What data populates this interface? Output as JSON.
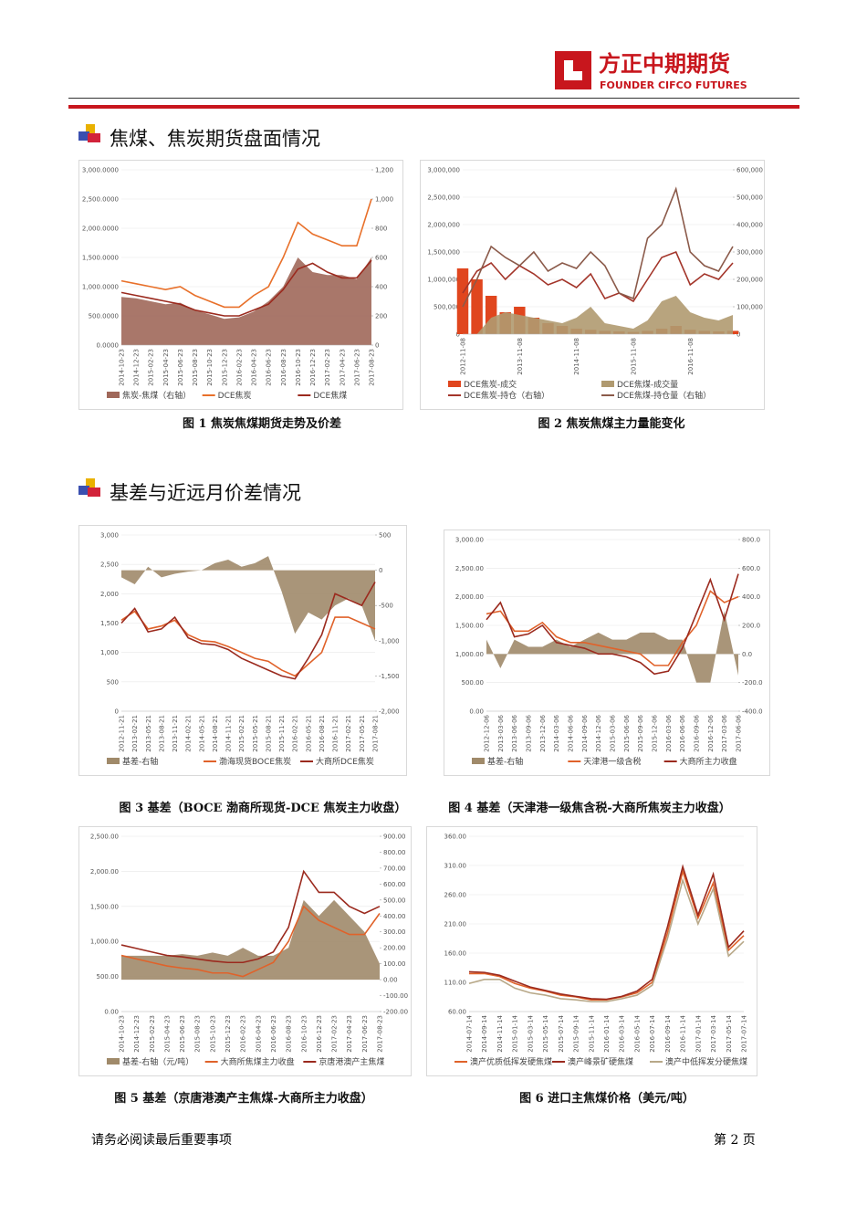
{
  "header": {
    "logo_cn": "方正中期期货",
    "logo_en": "FOUNDER CIFCO FUTURES"
  },
  "sections": [
    {
      "title": "焦煤、焦炭期货盘面情况"
    },
    {
      "title": "基差与近远月价差情况"
    }
  ],
  "chart_data": [
    {
      "type": "combo",
      "caption": "图 1 焦炭焦煤期货走势及价差",
      "categories": [
        "2014-10-23",
        "2014-12-23",
        "2015-02-23",
        "2015-04-23",
        "2015-06-23",
        "2015-08-23",
        "2015-10-23",
        "2015-12-23",
        "2016-02-23",
        "2016-04-23",
        "2016-06-23",
        "2016-08-23",
        "2016-10-23",
        "2016-12-23",
        "2017-02-23",
        "2017-04-23",
        "2017-06-23",
        "2017-08-23"
      ],
      "ylim": [
        0,
        3000
      ],
      "yticks": [
        {
          "value": 0,
          "label": "0.0000"
        },
        {
          "value": 500,
          "label": "500.0000"
        },
        {
          "value": 1000,
          "label": "1,000.0000"
        },
        {
          "value": 1500,
          "label": "1,500.0000"
        },
        {
          "value": 2000,
          "label": "2,000.0000"
        },
        {
          "value": 2500,
          "label": "2,500.0000"
        },
        {
          "value": 3000,
          "label": "3,000.0000"
        }
      ],
      "y2lim": [
        0,
        1200
      ],
      "y2ticks": [
        0,
        200,
        400,
        600,
        800,
        {
          "value": 1000,
          "label": "1,000"
        },
        {
          "value": 1200,
          "label": "1,200"
        }
      ],
      "series": [
        {
          "name": "焦炭-焦煤（右轴）",
          "kind": "area",
          "axis": "y2",
          "color": "#a0685a",
          "values": [
            330,
            320,
            300,
            280,
            290,
            240,
            210,
            180,
            190,
            230,
            300,
            400,
            600,
            500,
            480,
            480,
            450,
            600
          ]
        },
        {
          "name": "DCE焦炭",
          "kind": "line",
          "color": "#e8702a",
          "values": [
            1100,
            1050,
            1000,
            950,
            1000,
            850,
            750,
            650,
            650,
            850,
            1000,
            1500,
            2100,
            1900,
            1800,
            1700,
            1700,
            2500
          ]
        },
        {
          "name": "DCE焦煤",
          "kind": "line",
          "color": "#9b2a1e",
          "values": [
            900,
            850,
            800,
            750,
            700,
            600,
            550,
            500,
            500,
            600,
            700,
            950,
            1300,
            1400,
            1250,
            1150,
            1150,
            1450
          ]
        }
      ]
    },
    {
      "type": "combo",
      "caption": "图 2 焦炭焦煤主力量能变化",
      "categories": [
        "2012-11-08",
        null,
        null,
        null,
        "2013-11-08",
        null,
        null,
        null,
        "2014-11-08",
        null,
        null,
        null,
        "2015-11-08",
        null,
        null,
        null,
        "2016-11-08",
        null,
        null,
        null
      ],
      "ylim": [
        0,
        3000000
      ],
      "yticks": [
        0,
        {
          "value": 500000,
          "label": "500,000"
        },
        {
          "value": 1000000,
          "label": "1,000,000"
        },
        {
          "value": 1500000,
          "label": "1,500,000"
        },
        {
          "value": 2000000,
          "label": "2,000,000"
        },
        {
          "value": 2500000,
          "label": "2,500,000"
        },
        {
          "value": 3000000,
          "label": "3,000,000"
        }
      ],
      "y2lim": [
        0,
        600000
      ],
      "y2ticks": [
        0,
        {
          "value": 100000,
          "label": "100,000"
        },
        {
          "value": 200000,
          "label": "200,000"
        },
        {
          "value": 300000,
          "label": "300,000"
        },
        {
          "value": 400000,
          "label": "400,000"
        },
        {
          "value": 500000,
          "label": "500,000"
        },
        {
          "value": 600000,
          "label": "600,000"
        }
      ],
      "series": [
        {
          "name": "DCE焦炭-成交",
          "kind": "bar",
          "color": "#e0461e",
          "values": [
            1200000,
            1000000,
            700000,
            400000,
            500000,
            300000,
            200000,
            150000,
            100000,
            80000,
            60000,
            50000,
            40000,
            60000,
            100000,
            150000,
            80000,
            60000,
            50000,
            60000
          ]
        },
        {
          "name": "DCE焦煤-成交量",
          "kind": "area",
          "color": "#b09a70",
          "values": [
            0,
            0,
            300000,
            400000,
            350000,
            300000,
            250000,
            200000,
            300000,
            500000,
            200000,
            150000,
            100000,
            250000,
            600000,
            700000,
            400000,
            300000,
            250000,
            350000
          ]
        },
        {
          "name": "DCE焦炭-持仓（右轴）",
          "kind": "line",
          "axis": "y2",
          "color": "#a3352a",
          "values": [
            150000,
            230000,
            260000,
            200000,
            250000,
            220000,
            180000,
            200000,
            170000,
            220000,
            130000,
            150000,
            120000,
            200000,
            280000,
            300000,
            180000,
            220000,
            200000,
            260000
          ]
        },
        {
          "name": "DCE焦煤-持仓量（右轴）",
          "kind": "line",
          "axis": "y2",
          "color": "#8b5a4a",
          "values": [
            100000,
            200000,
            320000,
            280000,
            250000,
            300000,
            230000,
            260000,
            240000,
            300000,
            250000,
            150000,
            130000,
            350000,
            400000,
            530000,
            300000,
            250000,
            230000,
            320000
          ]
        }
      ]
    },
    {
      "type": "combo",
      "caption": "图 3 基差（BOCE 渤商所现货-DCE 焦炭主力收盘）",
      "categories": [
        "2012-11-21",
        "2013-02-21",
        "2013-05-21",
        "2013-08-21",
        "2013-11-21",
        "2014-02-21",
        "2014-05-21",
        "2014-08-21",
        "2014-11-21",
        "2015-02-21",
        "2015-05-21",
        "2015-08-21",
        "2015-11-21",
        "2016-02-21",
        "2016-05-21",
        "2016-08-21",
        "2016-11-21",
        "2017-02-21",
        "2017-05-21",
        "2017-08-21"
      ],
      "ylim": [
        0,
        3000
      ],
      "yticks": [
        0,
        500,
        {
          "value": 1000,
          "label": "1,000"
        },
        {
          "value": 1500,
          "label": "1,500"
        },
        {
          "value": 2000,
          "label": "2,000"
        },
        {
          "value": 2500,
          "label": "2,500"
        },
        {
          "value": 3000,
          "label": "3,000"
        }
      ],
      "y2lim": [
        -2000,
        500
      ],
      "y2ticks": [
        {
          "value": -2000,
          "label": "-2,000"
        },
        {
          "value": -1500,
          "label": "-1,500"
        },
        {
          "value": -1000,
          "label": "-1,000"
        },
        -500,
        0,
        500
      ],
      "series": [
        {
          "name": "基差-右轴",
          "kind": "area",
          "axis": "y2",
          "color": "#a08a6a",
          "values": [
            -100,
            -200,
            50,
            -100,
            -50,
            -20,
            0,
            100,
            150,
            50,
            100,
            200,
            -300,
            -900,
            -600,
            -700,
            -500,
            -400,
            -500,
            -1000
          ]
        },
        {
          "name": "渤海现货BOCE焦炭",
          "kind": "line",
          "color": "#e0622a",
          "values": [
            1550,
            1700,
            1400,
            1450,
            1550,
            1300,
            1200,
            1180,
            1100,
            1000,
            900,
            850,
            700,
            600,
            800,
            1000,
            1600,
            1600,
            1500,
            1400
          ]
        },
        {
          "name": "大商所DCE焦炭",
          "kind": "line",
          "color": "#9b2a1e",
          "values": [
            1500,
            1750,
            1350,
            1400,
            1600,
            1250,
            1150,
            1130,
            1050,
            900,
            800,
            700,
            600,
            550,
            900,
            1300,
            2000,
            1900,
            1800,
            2200
          ]
        }
      ]
    },
    {
      "type": "combo",
      "caption": "图 4 基差（天津港一级焦含税-大商所焦炭主力收盘）",
      "categories": [
        "2012-12-06",
        "2013-03-06",
        "2013-06-06",
        "2013-09-06",
        "2013-12-06",
        "2014-03-06",
        "2014-06-06",
        "2014-09-06",
        "2014-12-06",
        "2015-03-06",
        "2015-06-06",
        "2015-09-06",
        "2015-12-06",
        "2016-03-06",
        "2016-06-06",
        "2016-09-06",
        "2016-12-06",
        "2017-03-06",
        "2017-06-06"
      ],
      "ylim": [
        0,
        3000
      ],
      "yticks": [
        {
          "value": 0,
          "label": "0.00"
        },
        {
          "value": 500,
          "label": "500.00"
        },
        {
          "value": 1000,
          "label": "1,000.00"
        },
        {
          "value": 1500,
          "label": "1,500.00"
        },
        {
          "value": 2000,
          "label": "2,000.00"
        },
        {
          "value": 2500,
          "label": "2,500.00"
        },
        {
          "value": 3000,
          "label": "3,000.00"
        }
      ],
      "y2lim": [
        -400,
        800
      ],
      "y2ticks": [
        {
          "value": -400,
          "label": "-400.0"
        },
        {
          "value": -200,
          "label": "-200.0"
        },
        {
          "value": 0,
          "label": "0.0"
        },
        {
          "value": 200,
          "label": "200.0"
        },
        {
          "value": 400,
          "label": "400.0"
        },
        {
          "value": 600,
          "label": "600.0"
        },
        {
          "value": 800,
          "label": "800.0"
        }
      ],
      "series": [
        {
          "name": "基差-右轴",
          "kind": "area",
          "axis": "y2",
          "color": "#a08a6a",
          "values": [
            100,
            -100,
            100,
            50,
            50,
            100,
            50,
            100,
            150,
            100,
            100,
            150,
            150,
            100,
            100,
            -200,
            -200,
            300,
            -150
          ]
        },
        {
          "name": "天津港一级含税",
          "kind": "line",
          "color": "#e0622a",
          "values": [
            1700,
            1750,
            1400,
            1400,
            1550,
            1300,
            1200,
            1200,
            1150,
            1100,
            1050,
            1000,
            800,
            800,
            1200,
            1500,
            2100,
            1900,
            2000
          ]
        },
        {
          "name": "大商所主力收盘",
          "kind": "line",
          "color": "#9b2a1e",
          "values": [
            1600,
            1900,
            1300,
            1350,
            1500,
            1200,
            1150,
            1100,
            1000,
            1000,
            950,
            850,
            650,
            700,
            1100,
            1700,
            2300,
            1600,
            2400
          ]
        }
      ]
    },
    {
      "type": "combo",
      "caption": "图 5 基差（京唐港澳产主焦煤-大商所主力收盘）",
      "categories": [
        "2014-10-23",
        "2014-12-23",
        "2015-02-23",
        "2015-04-23",
        "2015-06-23",
        "2015-08-23",
        "2015-10-23",
        "2015-12-23",
        "2016-02-23",
        "2016-04-23",
        "2016-06-23",
        "2016-08-23",
        "2016-10-23",
        "2016-12-23",
        "2017-02-23",
        "2017-04-23",
        "2017-06-23",
        "2017-08-23"
      ],
      "ylim": [
        0,
        2500
      ],
      "yticks": [
        {
          "value": 0,
          "label": "0.00"
        },
        {
          "value": 500,
          "label": "500.00"
        },
        {
          "value": 1000,
          "label": "1,000.00"
        },
        {
          "value": 1500,
          "label": "1,500.00"
        },
        {
          "value": 2000,
          "label": "2,000.00"
        },
        {
          "value": 2500,
          "label": "2,500.00"
        }
      ],
      "y2lim": [
        -200,
        900
      ],
      "y2ticks": [
        {
          "value": -200,
          "label": "-200.00"
        },
        {
          "value": -100,
          "label": "-100.00"
        },
        {
          "value": 0,
          "label": "0.00"
        },
        {
          "value": 100,
          "label": "100.00"
        },
        {
          "value": 200,
          "label": "200.00"
        },
        {
          "value": 300,
          "label": "300.00"
        },
        {
          "value": 400,
          "label": "400.00"
        },
        {
          "value": 500,
          "label": "500.00"
        },
        {
          "value": 600,
          "label": "600.00"
        },
        {
          "value": 700,
          "label": "700.00"
        },
        {
          "value": 800,
          "label": "800.00"
        },
        {
          "value": 900,
          "label": "900.00"
        }
      ],
      "series": [
        {
          "name": "基差-右轴（元/吨）",
          "kind": "area",
          "axis": "y2",
          "color": "#a08a6a",
          "values": [
            150,
            150,
            150,
            150,
            160,
            150,
            170,
            150,
            200,
            150,
            150,
            200,
            500,
            400,
            500,
            400,
            300,
            100
          ]
        },
        {
          "name": "大商所焦煤主力收盘",
          "kind": "line",
          "color": "#e0622a",
          "values": [
            800,
            750,
            700,
            650,
            620,
            600,
            550,
            550,
            500,
            600,
            700,
            1000,
            1500,
            1300,
            1200,
            1100,
            1100,
            1400
          ]
        },
        {
          "name": "京唐港澳产主焦煤",
          "kind": "line",
          "color": "#9b2a1e",
          "values": [
            950,
            900,
            850,
            800,
            780,
            750,
            720,
            700,
            700,
            750,
            850,
            1200,
            2000,
            1700,
            1700,
            1500,
            1400,
            1500
          ]
        }
      ]
    },
    {
      "type": "line",
      "caption": "图 6 进口主焦煤价格（美元/吨）",
      "categories": [
        "2014-07-14",
        "2014-09-14",
        "2014-11-14",
        "2015-01-14",
        "2015-03-14",
        "2015-05-14",
        "2015-07-14",
        "2015-09-14",
        "2015-11-14",
        "2016-01-14",
        "2016-03-14",
        "2016-05-14",
        "2016-07-14",
        "2016-09-14",
        "2016-11-14",
        "2017-01-14",
        "2017-03-14",
        "2017-05-14",
        "2017-07-14"
      ],
      "ylim": [
        60,
        360
      ],
      "yticks": [
        {
          "value": 60,
          "label": "60.00"
        },
        {
          "value": 110,
          "label": "110.00"
        },
        {
          "value": 160,
          "label": "160.00"
        },
        {
          "value": 210,
          "label": "210.00"
        },
        {
          "value": 260,
          "label": "260.00"
        },
        {
          "value": 310,
          "label": "310.00"
        },
        {
          "value": 360,
          "label": "360.00"
        }
      ],
      "series": [
        {
          "name": "澳产优质低挥发硬焦煤",
          "kind": "line",
          "color": "#e0622a",
          "values": [
            125,
            125,
            120,
            108,
            100,
            95,
            88,
            85,
            80,
            80,
            85,
            92,
            110,
            195,
            300,
            220,
            280,
            165,
            190
          ]
        },
        {
          "name": "澳产峰景矿硬焦煤",
          "kind": "line",
          "color": "#9b2a1e",
          "values": [
            128,
            127,
            122,
            112,
            102,
            96,
            90,
            86,
            82,
            81,
            86,
            95,
            115,
            205,
            308,
            225,
            295,
            170,
            198
          ]
        },
        {
          "name": "澳产中低挥发分硬焦煤",
          "kind": "line",
          "color": "#b8a888",
          "values": [
            108,
            115,
            115,
            100,
            92,
            88,
            82,
            80,
            77,
            77,
            82,
            88,
            105,
            185,
            285,
            210,
            270,
            155,
            180
          ]
        }
      ]
    }
  ],
  "footer": {
    "note": "请务必阅读最后重要事项",
    "page": "第 2 页"
  }
}
